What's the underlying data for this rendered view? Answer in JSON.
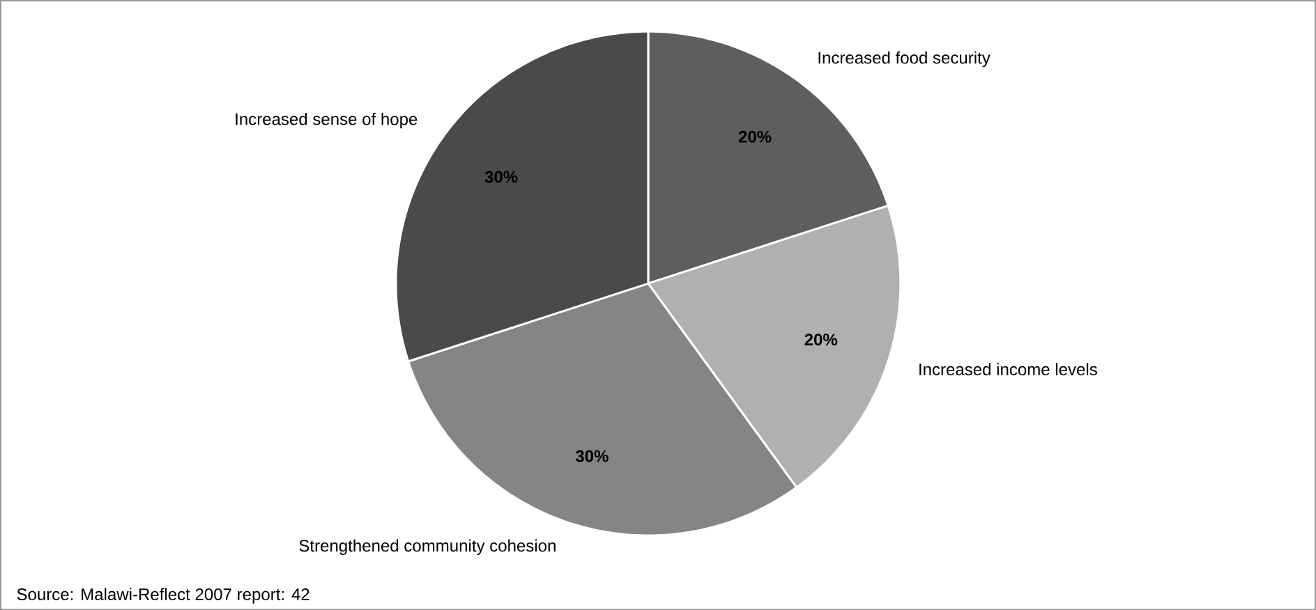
{
  "chart_data": {
    "type": "pie",
    "categories": [
      "Increased food security",
      "Increased income levels",
      "Strengthened community cohesion",
      "Increased sense of hope"
    ],
    "values": [
      20,
      20,
      30,
      30
    ],
    "value_labels": [
      "20%",
      "20%",
      "30%",
      "30%"
    ],
    "colors": [
      "#5e5e5e",
      "#b0b0b0",
      "#858585",
      "#4a4a4a"
    ],
    "annotations": [
      "Source: Malawi-Reflect 2007 report: 42"
    ]
  }
}
